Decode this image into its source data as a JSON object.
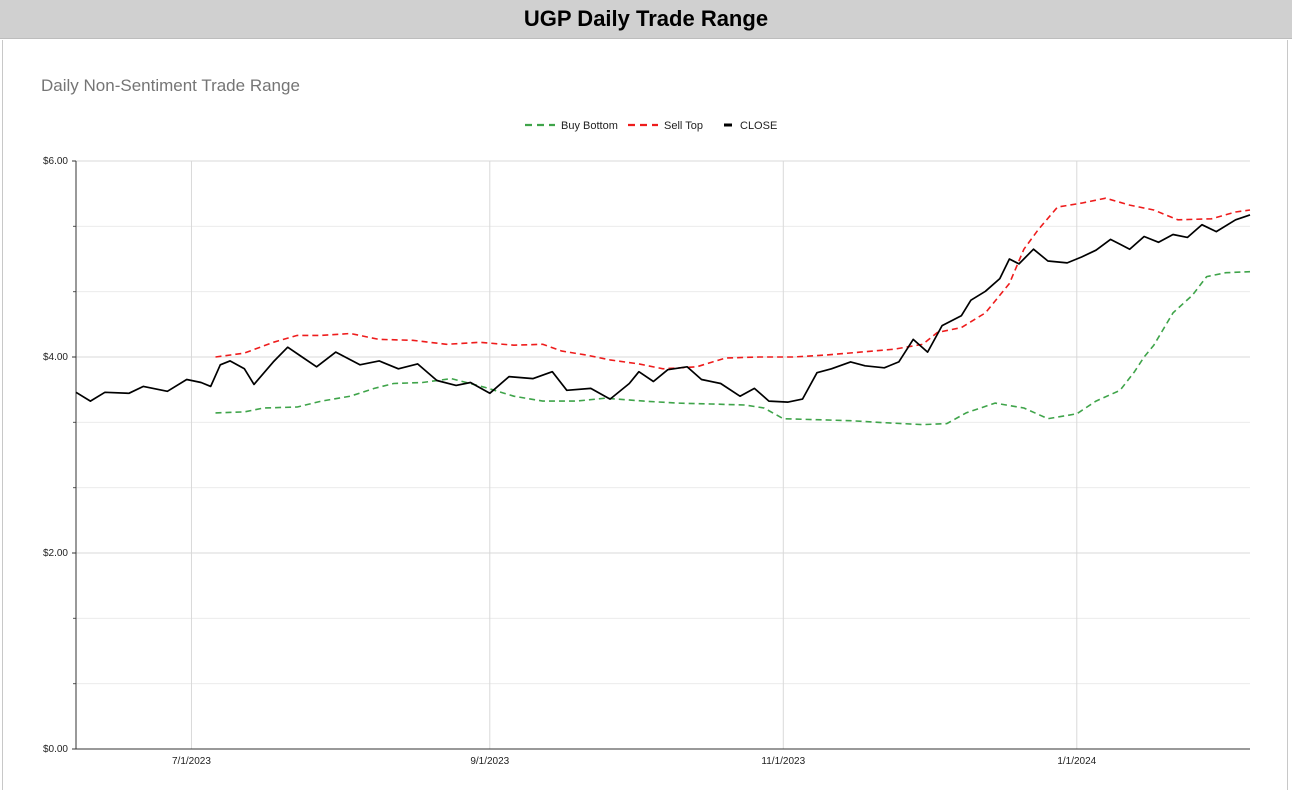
{
  "header": {
    "title": "UGP Daily Trade Range"
  },
  "colors": {
    "buy_bottom": "#3fa44a",
    "sell_top": "#ee1c1c",
    "close": "#000000",
    "grid": "#d9d9d9"
  },
  "chart_data": {
    "type": "line",
    "title": "Daily Non-Sentiment Trade Range",
    "legend_position": "top",
    "grid": true,
    "x_type": "date",
    "xlim": [
      "2023-06-07",
      "2024-02-06"
    ],
    "x_ticks": [
      {
        "date": "2023-07-01",
        "label": "7/1/2023"
      },
      {
        "date": "2023-09-01",
        "label": "9/1/2023"
      },
      {
        "date": "2023-11-01",
        "label": "11/1/2023"
      },
      {
        "date": "2024-01-01",
        "label": "1/1/2024"
      }
    ],
    "ylim": [
      0,
      6
    ],
    "y_ticks": [
      {
        "value": 0,
        "label": "$0.00"
      },
      {
        "value": 2,
        "label": "$2.00"
      },
      {
        "value": 4,
        "label": "$4.00"
      },
      {
        "value": 6,
        "label": "$6.00"
      }
    ],
    "series": [
      {
        "name": "Buy Bottom",
        "style": "dashed",
        "color": "#3fa44a",
        "points": [
          [
            "2023-07-06",
            3.43
          ],
          [
            "2023-07-12",
            3.44
          ],
          [
            "2023-07-16",
            3.48
          ],
          [
            "2023-07-23",
            3.49
          ],
          [
            "2023-07-28",
            3.55
          ],
          [
            "2023-08-03",
            3.6
          ],
          [
            "2023-08-08",
            3.68
          ],
          [
            "2023-08-12",
            3.73
          ],
          [
            "2023-08-18",
            3.74
          ],
          [
            "2023-08-24",
            3.78
          ],
          [
            "2023-08-31",
            3.69
          ],
          [
            "2023-09-06",
            3.6
          ],
          [
            "2023-09-12",
            3.55
          ],
          [
            "2023-09-19",
            3.55
          ],
          [
            "2023-09-25",
            3.58
          ],
          [
            "2023-10-03",
            3.55
          ],
          [
            "2023-10-10",
            3.53
          ],
          [
            "2023-10-17",
            3.52
          ],
          [
            "2023-10-24",
            3.51
          ],
          [
            "2023-10-28",
            3.48
          ],
          [
            "2023-11-01",
            3.37
          ],
          [
            "2023-11-08",
            3.36
          ],
          [
            "2023-11-15",
            3.35
          ],
          [
            "2023-11-22",
            3.33
          ],
          [
            "2023-11-30",
            3.31
          ],
          [
            "2023-12-05",
            3.32
          ],
          [
            "2023-12-09",
            3.43
          ],
          [
            "2023-12-15",
            3.53
          ],
          [
            "2023-12-21",
            3.48
          ],
          [
            "2023-12-26",
            3.37
          ],
          [
            "2024-01-01",
            3.42
          ],
          [
            "2024-01-05",
            3.55
          ],
          [
            "2024-01-10",
            3.66
          ],
          [
            "2024-01-13",
            3.85
          ],
          [
            "2024-01-15",
            4.0
          ],
          [
            "2024-01-17",
            4.12
          ],
          [
            "2024-01-21",
            4.45
          ],
          [
            "2024-01-25",
            4.63
          ],
          [
            "2024-01-28",
            4.82
          ],
          [
            "2024-02-01",
            4.86
          ],
          [
            "2024-02-06",
            4.87
          ]
        ]
      },
      {
        "name": "Sell Top",
        "style": "dashed",
        "color": "#ee1c1c",
        "points": [
          [
            "2023-07-06",
            4.0
          ],
          [
            "2023-07-12",
            4.04
          ],
          [
            "2023-07-18",
            4.15
          ],
          [
            "2023-07-23",
            4.22
          ],
          [
            "2023-07-28",
            4.22
          ],
          [
            "2023-08-03",
            4.24
          ],
          [
            "2023-08-09",
            4.18
          ],
          [
            "2023-08-16",
            4.17
          ],
          [
            "2023-08-23",
            4.13
          ],
          [
            "2023-08-30",
            4.15
          ],
          [
            "2023-09-06",
            4.12
          ],
          [
            "2023-09-12",
            4.13
          ],
          [
            "2023-09-16",
            4.06
          ],
          [
            "2023-09-21",
            4.02
          ],
          [
            "2023-09-26",
            3.97
          ],
          [
            "2023-10-02",
            3.93
          ],
          [
            "2023-10-07",
            3.88
          ],
          [
            "2023-10-14",
            3.9
          ],
          [
            "2023-10-20",
            3.99
          ],
          [
            "2023-10-27",
            4.0
          ],
          [
            "2023-11-03",
            4.0
          ],
          [
            "2023-11-10",
            4.02
          ],
          [
            "2023-11-17",
            4.05
          ],
          [
            "2023-11-24",
            4.08
          ],
          [
            "2023-11-30",
            4.13
          ],
          [
            "2023-12-03",
            4.25
          ],
          [
            "2023-12-08",
            4.3
          ],
          [
            "2023-12-13",
            4.45
          ],
          [
            "2023-12-18",
            4.75
          ],
          [
            "2023-12-21",
            5.1
          ],
          [
            "2023-12-24",
            5.3
          ],
          [
            "2023-12-28",
            5.53
          ],
          [
            "2024-01-02",
            5.57
          ],
          [
            "2024-01-07",
            5.62
          ],
          [
            "2024-01-12",
            5.55
          ],
          [
            "2024-01-17",
            5.5
          ],
          [
            "2024-01-22",
            5.4
          ],
          [
            "2024-01-29",
            5.41
          ],
          [
            "2024-02-03",
            5.48
          ],
          [
            "2024-02-06",
            5.5
          ]
        ]
      },
      {
        "name": "CLOSE",
        "style": "solid",
        "color": "#000000",
        "points": [
          [
            "2023-06-07",
            3.64
          ],
          [
            "2023-06-10",
            3.55
          ],
          [
            "2023-06-13",
            3.64
          ],
          [
            "2023-06-18",
            3.63
          ],
          [
            "2023-06-21",
            3.7
          ],
          [
            "2023-06-26",
            3.65
          ],
          [
            "2023-06-30",
            3.77
          ],
          [
            "2023-07-03",
            3.74
          ],
          [
            "2023-07-05",
            3.7
          ],
          [
            "2023-07-07",
            3.92
          ],
          [
            "2023-07-09",
            3.96
          ],
          [
            "2023-07-12",
            3.88
          ],
          [
            "2023-07-14",
            3.72
          ],
          [
            "2023-07-18",
            3.95
          ],
          [
            "2023-07-21",
            4.1
          ],
          [
            "2023-07-24",
            4.0
          ],
          [
            "2023-07-27",
            3.9
          ],
          [
            "2023-07-31",
            4.05
          ],
          [
            "2023-08-05",
            3.92
          ],
          [
            "2023-08-09",
            3.96
          ],
          [
            "2023-08-13",
            3.88
          ],
          [
            "2023-08-17",
            3.93
          ],
          [
            "2023-08-21",
            3.76
          ],
          [
            "2023-08-25",
            3.71
          ],
          [
            "2023-08-28",
            3.74
          ],
          [
            "2023-09-01",
            3.63
          ],
          [
            "2023-09-05",
            3.8
          ],
          [
            "2023-09-10",
            3.78
          ],
          [
            "2023-09-14",
            3.85
          ],
          [
            "2023-09-17",
            3.66
          ],
          [
            "2023-09-22",
            3.68
          ],
          [
            "2023-09-26",
            3.57
          ],
          [
            "2023-09-30",
            3.73
          ],
          [
            "2023-10-02",
            3.85
          ],
          [
            "2023-10-05",
            3.75
          ],
          [
            "2023-10-08",
            3.87
          ],
          [
            "2023-10-12",
            3.9
          ],
          [
            "2023-10-15",
            3.77
          ],
          [
            "2023-10-19",
            3.73
          ],
          [
            "2023-10-23",
            3.6
          ],
          [
            "2023-10-26",
            3.68
          ],
          [
            "2023-10-29",
            3.55
          ],
          [
            "2023-11-02",
            3.54
          ],
          [
            "2023-11-05",
            3.57
          ],
          [
            "2023-11-08",
            3.84
          ],
          [
            "2023-11-11",
            3.88
          ],
          [
            "2023-11-15",
            3.95
          ],
          [
            "2023-11-18",
            3.91
          ],
          [
            "2023-11-22",
            3.89
          ],
          [
            "2023-11-25",
            3.95
          ],
          [
            "2023-11-28",
            4.18
          ],
          [
            "2023-12-01",
            4.05
          ],
          [
            "2023-12-04",
            4.32
          ],
          [
            "2023-12-08",
            4.42
          ],
          [
            "2023-12-10",
            4.58
          ],
          [
            "2023-12-13",
            4.67
          ],
          [
            "2023-12-16",
            4.8
          ],
          [
            "2023-12-18",
            5.0
          ],
          [
            "2023-12-20",
            4.95
          ],
          [
            "2023-12-23",
            5.1
          ],
          [
            "2023-12-26",
            4.98
          ],
          [
            "2023-12-30",
            4.96
          ],
          [
            "2024-01-02",
            5.02
          ],
          [
            "2024-01-05",
            5.09
          ],
          [
            "2024-01-08",
            5.2
          ],
          [
            "2024-01-10",
            5.15
          ],
          [
            "2024-01-12",
            5.1
          ],
          [
            "2024-01-15",
            5.23
          ],
          [
            "2024-01-18",
            5.17
          ],
          [
            "2024-01-21",
            5.25
          ],
          [
            "2024-01-24",
            5.22
          ],
          [
            "2024-01-27",
            5.35
          ],
          [
            "2024-01-30",
            5.28
          ],
          [
            "2024-02-03",
            5.4
          ],
          [
            "2024-02-06",
            5.45
          ]
        ]
      }
    ]
  }
}
